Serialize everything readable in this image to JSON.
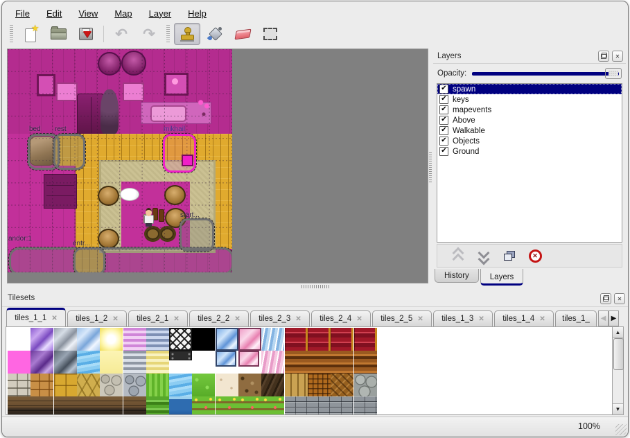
{
  "menu_bar": {
    "items": [
      {
        "label": "File"
      },
      {
        "label": "Edit"
      },
      {
        "label": "View"
      },
      {
        "label": "Map"
      },
      {
        "label": "Layer"
      },
      {
        "label": "Help"
      }
    ]
  },
  "toolbar": {
    "buttons": [
      {
        "name": "new-map"
      },
      {
        "name": "open-map"
      },
      {
        "name": "save-map"
      },
      {
        "name": "undo",
        "disabled": true
      },
      {
        "name": "redo",
        "disabled": true
      },
      {
        "name": "stamp-brush",
        "active": true
      },
      {
        "name": "bucket-fill"
      },
      {
        "name": "eraser"
      },
      {
        "name": "rectangular-select"
      }
    ]
  },
  "map_view": {
    "objects": [
      {
        "label": "bed"
      },
      {
        "label": "rest"
      },
      {
        "label": "mikhail",
        "selected": true
      },
      {
        "label": "start..."
      },
      {
        "label": "andor:1"
      },
      {
        "label": "entr..."
      }
    ]
  },
  "layers_panel": {
    "title": "Layers",
    "opacity_label": "Opacity:",
    "layers": [
      {
        "name": "spawn",
        "checked": true,
        "selected": true
      },
      {
        "name": "keys",
        "checked": true
      },
      {
        "name": "mapevents",
        "checked": true
      },
      {
        "name": "Above",
        "checked": true
      },
      {
        "name": "Walkable",
        "checked": true
      },
      {
        "name": "Objects",
        "checked": true
      },
      {
        "name": "Ground",
        "checked": true
      }
    ],
    "buttons": [
      {
        "name": "raise-layer"
      },
      {
        "name": "lower-layer"
      },
      {
        "name": "duplicate-layer"
      },
      {
        "name": "delete-layer"
      }
    ],
    "tabs": [
      {
        "label": "History"
      },
      {
        "label": "Layers",
        "active": true
      }
    ]
  },
  "tilesets_panel": {
    "title": "Tilesets",
    "tabs": [
      {
        "label": "tiles_1_1",
        "active": true
      },
      {
        "label": "tiles_1_2"
      },
      {
        "label": "tiles_2_1"
      },
      {
        "label": "tiles_2_2"
      },
      {
        "label": "tiles_2_3"
      },
      {
        "label": "tiles_2_4"
      },
      {
        "label": "tiles_2_5"
      },
      {
        "label": "tiles_1_3"
      },
      {
        "label": "tiles_1_4"
      },
      {
        "label": "tiles_1_",
        "partial": true
      }
    ],
    "tiles": [
      [
        "empty",
        "glass-purple",
        "glass-gray",
        "glass-blue",
        "glow-yellow",
        "stripe-pink",
        "stripe-slate",
        "lattice",
        "black",
        "glass-blue2",
        "glass-pink",
        "drape-blue",
        "curtain-red",
        "curtain-red",
        "curtain-red",
        "curtain-red"
      ],
      [
        "magenta",
        "glass-darkpurple",
        "glass-darkgray",
        "water-blue",
        "pale-yellow",
        "stripe-gray",
        "stripe-yellow",
        "metal-plate",
        "empty",
        "glass-blue-sm",
        "glass-pink-sm",
        "drape-pink",
        "wood-beams",
        "wood-beams",
        "wood-beams",
        "wood-beams"
      ],
      [
        "stone-blocks",
        "stone-orange",
        "tile-gold",
        "stone-yellow",
        "pebbles",
        "cobblestone",
        "grass-rows",
        "water-blue",
        "grass",
        "sand",
        "dirt",
        "shingles-dark",
        "planks",
        "brick-weave",
        "herringbone",
        "stone-pile"
      ],
      [
        "wall-dark-brick",
        "wall-dark-brick",
        "wall-dark-brick",
        "wall-dark-brick",
        "wall-dark-brick",
        "wall-dark-brick",
        "hedge",
        "water-deep",
        "grass-flowers",
        "grass-flowers",
        "grass-flowers",
        "grass-flowers",
        "brick-gray",
        "brick-gray",
        "brick-gray",
        "brick-gray"
      ]
    ]
  },
  "status_bar": {
    "zoom_level": "100%"
  },
  "icons": {
    "close": "✕",
    "check": "✔",
    "scroll_left": "◀",
    "scroll_right": "▶",
    "scroll_up": "▲",
    "scroll_down": "▼",
    "undo": "↶",
    "redo": "↷",
    "new_star": "★",
    "delete_x": "✕"
  },
  "colors": {
    "selection_blue": "#000080",
    "selected_object": "#f020c8",
    "map_background": "#808080",
    "wall_magenta": "#c2309a",
    "floor_yellow": "#e0aa2e"
  }
}
